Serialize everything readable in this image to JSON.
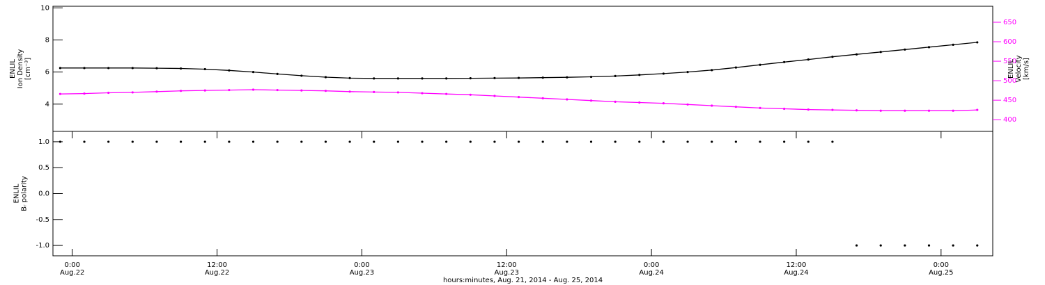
{
  "chart_data": [
    {
      "type": "line",
      "ylabel": [
        "ENLIL",
        "Ion Density",
        "[cm⁻³]"
      ],
      "y2label": [
        "ENLIL",
        "Velocity",
        "[km/s]"
      ],
      "xlim": [
        "2014-08-21T22:24",
        "2014-08-25T04:17"
      ],
      "ylim": [
        2.3,
        10.1
      ],
      "yticks": [
        4,
        6,
        8,
        10
      ],
      "y2lim": [
        370,
        691
      ],
      "y2ticks": [
        400,
        450,
        500,
        550,
        600,
        650
      ],
      "y2color": "#ff00ff",
      "x": [
        "2014-08-21T23:00",
        "2014-08-22T01:00",
        "2014-08-22T03:00",
        "2014-08-22T05:00",
        "2014-08-22T07:00",
        "2014-08-22T09:00",
        "2014-08-22T11:00",
        "2014-08-22T13:00",
        "2014-08-22T15:00",
        "2014-08-22T17:00",
        "2014-08-22T19:00",
        "2014-08-22T21:00",
        "2014-08-22T23:00",
        "2014-08-23T01:00",
        "2014-08-23T03:00",
        "2014-08-23T05:00",
        "2014-08-23T07:00",
        "2014-08-23T09:00",
        "2014-08-23T11:00",
        "2014-08-23T13:00",
        "2014-08-23T15:00",
        "2014-08-23T17:00",
        "2014-08-23T19:00",
        "2014-08-23T21:00",
        "2014-08-23T23:00",
        "2014-08-24T01:00",
        "2014-08-24T03:00",
        "2014-08-24T05:00",
        "2014-08-24T07:00",
        "2014-08-24T09:00",
        "2014-08-24T11:00",
        "2014-08-24T13:00",
        "2014-08-24T15:00",
        "2014-08-24T17:00",
        "2014-08-24T19:00",
        "2014-08-24T21:00",
        "2014-08-24T23:00",
        "2014-08-25T01:00",
        "2014-08-25T03:00"
      ],
      "series": [
        {
          "name": "Ion Density",
          "color": "#000000",
          "line": true,
          "values": [
            6.25,
            6.25,
            6.25,
            6.25,
            6.24,
            6.22,
            6.18,
            6.1,
            6.0,
            5.88,
            5.77,
            5.68,
            5.62,
            5.6,
            5.6,
            5.6,
            5.6,
            5.61,
            5.62,
            5.63,
            5.65,
            5.67,
            5.7,
            5.75,
            5.82,
            5.9,
            6.0,
            6.12,
            6.28,
            6.45,
            6.62,
            6.78,
            6.95,
            7.1,
            7.25,
            7.4,
            7.55,
            7.7,
            7.85
          ]
        },
        {
          "name": "Velocity",
          "color": "#ff00ff",
          "axis": "y2",
          "line": true,
          "values": [
            466,
            467,
            469,
            470,
            472,
            474,
            475,
            476,
            477,
            476,
            475,
            474,
            472,
            471,
            470,
            468,
            466,
            464,
            461,
            458,
            455,
            452,
            449,
            446,
            444,
            442,
            439,
            436,
            433,
            430,
            428,
            426,
            425,
            424,
            423,
            423,
            423,
            423,
            425
          ]
        }
      ]
    },
    {
      "type": "scatter",
      "ylabel": [
        "ENLIL",
        "Bᵣ polarity"
      ],
      "xlabel": "hours:minutes, Aug. 21, 2014 - Aug. 25, 2014",
      "xlim": [
        "2014-08-21T22:24",
        "2014-08-25T04:17"
      ],
      "xticks": [
        {
          "value": "2014-08-22T00:00",
          "label": "0:00\nAug.22"
        },
        {
          "value": "2014-08-22T12:00",
          "label": "12:00\nAug.22"
        },
        {
          "value": "2014-08-23T00:00",
          "label": "0:00\nAug.23"
        },
        {
          "value": "2014-08-23T12:00",
          "label": "12:00\nAug.23"
        },
        {
          "value": "2014-08-24T00:00",
          "label": "0:00\nAug.24"
        },
        {
          "value": "2014-08-24T12:00",
          "label": "12:00\nAug.24"
        },
        {
          "value": "2014-08-25T00:00",
          "label": "0:00\nAug.25"
        }
      ],
      "ylim": [
        -1.2,
        1.2
      ],
      "yticks": [
        {
          "value": -1,
          "label": "-1.0"
        },
        {
          "value": -0.5,
          "label": "-0.5"
        },
        {
          "value": 0,
          "label": "0.0"
        },
        {
          "value": 0.5,
          "label": "0.5"
        },
        {
          "value": 1,
          "label": "1.0"
        }
      ],
      "x": [
        "2014-08-21T23:00",
        "2014-08-22T01:00",
        "2014-08-22T03:00",
        "2014-08-22T05:00",
        "2014-08-22T07:00",
        "2014-08-22T09:00",
        "2014-08-22T11:00",
        "2014-08-22T13:00",
        "2014-08-22T15:00",
        "2014-08-22T17:00",
        "2014-08-22T19:00",
        "2014-08-22T21:00",
        "2014-08-22T23:00",
        "2014-08-23T01:00",
        "2014-08-23T03:00",
        "2014-08-23T05:00",
        "2014-08-23T07:00",
        "2014-08-23T09:00",
        "2014-08-23T11:00",
        "2014-08-23T13:00",
        "2014-08-23T15:00",
        "2014-08-23T17:00",
        "2014-08-23T19:00",
        "2014-08-23T21:00",
        "2014-08-23T23:00",
        "2014-08-24T01:00",
        "2014-08-24T03:00",
        "2014-08-24T05:00",
        "2014-08-24T07:00",
        "2014-08-24T09:00",
        "2014-08-24T11:00",
        "2014-08-24T13:00",
        "2014-08-24T15:00",
        "2014-08-24T17:00",
        "2014-08-24T19:00",
        "2014-08-24T21:00",
        "2014-08-24T23:00",
        "2014-08-25T01:00",
        "2014-08-25T03:00"
      ],
      "series": [
        {
          "name": "Br polarity",
          "color": "#000000",
          "line": false,
          "values": [
            1,
            1,
            1,
            1,
            1,
            1,
            1,
            1,
            1,
            1,
            1,
            1,
            1,
            1,
            1,
            1,
            1,
            1,
            1,
            1,
            1,
            1,
            1,
            1,
            1,
            1,
            1,
            1,
            1,
            1,
            1,
            1,
            1,
            -1,
            -1,
            -1,
            -1,
            -1,
            -1
          ]
        }
      ]
    }
  ]
}
